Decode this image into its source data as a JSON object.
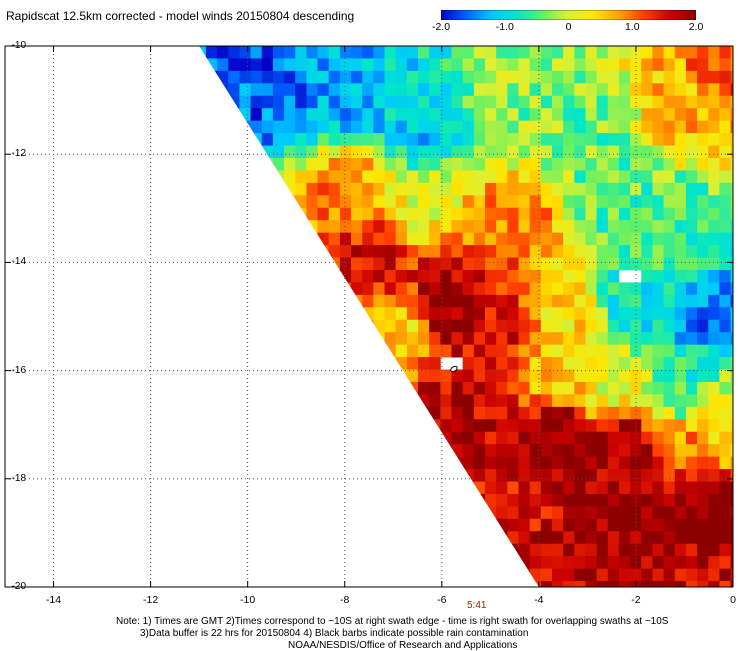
{
  "title": "Rapidscat 12.5km corrected - model winds 20150804 descending",
  "colorbar": {
    "ticks": [
      "-2.0",
      "-1.0",
      "0",
      "1.0",
      "2.0"
    ],
    "tick_values": [
      -2,
      -1,
      0,
      1,
      2
    ],
    "colors": [
      "#0000c8",
      "#0064ff",
      "#00c8ff",
      "#00e6c8",
      "#64f064",
      "#dcf032",
      "#ffe600",
      "#ffa000",
      "#ff3c00",
      "#c80000",
      "#8c0000"
    ]
  },
  "chart_data": {
    "type": "heatmap",
    "title": "Rapidscat 12.5km corrected - model winds 20150804 descending",
    "xlim": [
      -15,
      0
    ],
    "ylim": [
      -20,
      -10
    ],
    "x_ticks": [
      "-14",
      "-12",
      "-10",
      "-8",
      "-6",
      "-4",
      "-2",
      "0"
    ],
    "x_tick_values": [
      -14,
      -12,
      -10,
      -8,
      -6,
      -4,
      -2,
      0
    ],
    "y_ticks": [
      "-10",
      "-12",
      "-14",
      "-16",
      "-18",
      "-20"
    ],
    "y_tick_values": [
      -10,
      -12,
      -14,
      -16,
      -18,
      -20
    ],
    "value_range": [
      -2.0,
      2.0
    ],
    "cell_size_deg": 0.23,
    "swath_edge": [
      [
        -11.0,
        -10.0
      ],
      [
        -4.0,
        -20.0
      ]
    ],
    "grid": true,
    "regions": [
      {
        "lon": -9.5,
        "lat": -10.8,
        "value": -1.6
      },
      {
        "lon": -8.0,
        "lat": -11.0,
        "value": -1.3
      },
      {
        "lon": -6.5,
        "lat": -11.5,
        "value": -1.1
      },
      {
        "lon": -4.5,
        "lat": -11.0,
        "value": -0.3
      },
      {
        "lon": -3.0,
        "lat": -11.5,
        "value": -0.4
      },
      {
        "lon": -1.0,
        "lat": -11.0,
        "value": 0.6
      },
      {
        "lon": -0.2,
        "lat": -10.5,
        "value": 1.2
      },
      {
        "lon": -8.0,
        "lat": -12.7,
        "value": 0.9
      },
      {
        "lon": -6.5,
        "lat": -13.0,
        "value": 0.2
      },
      {
        "lon": -4.5,
        "lat": -13.5,
        "value": 1.0
      },
      {
        "lon": -2.5,
        "lat": -13.0,
        "value": -0.5
      },
      {
        "lon": -1.0,
        "lat": -13.5,
        "value": -0.6
      },
      {
        "lon": -7.3,
        "lat": -13.9,
        "value": 1.6
      },
      {
        "lon": -5.9,
        "lat": -14.8,
        "value": 2.0
      },
      {
        "lon": -4.8,
        "lat": -15.2,
        "value": 1.5
      },
      {
        "lon": -3.5,
        "lat": -15.0,
        "value": 0.4
      },
      {
        "lon": -2.0,
        "lat": -14.8,
        "value": -0.9
      },
      {
        "lon": -0.6,
        "lat": -14.9,
        "value": -1.5
      },
      {
        "lon": -6.8,
        "lat": -15.2,
        "value": 0.5
      },
      {
        "lon": -5.0,
        "lat": -16.3,
        "value": 1.6
      },
      {
        "lon": -3.8,
        "lat": -16.0,
        "value": 0.5
      },
      {
        "lon": -2.5,
        "lat": -16.2,
        "value": 0.1
      },
      {
        "lon": -1.0,
        "lat": -16.3,
        "value": -0.6
      },
      {
        "lon": -5.8,
        "lat": -17.0,
        "value": 1.8
      },
      {
        "lon": -3.6,
        "lat": -17.3,
        "value": 2.1
      },
      {
        "lon": -2.2,
        "lat": -17.5,
        "value": 1.9
      },
      {
        "lon": -0.8,
        "lat": -17.5,
        "value": 1.0
      },
      {
        "lon": -0.2,
        "lat": -17.0,
        "value": 0.2
      },
      {
        "lon": -4.4,
        "lat": -18.5,
        "value": 1.5
      },
      {
        "lon": -3.0,
        "lat": -19.0,
        "value": 1.9
      },
      {
        "lon": -1.5,
        "lat": -18.8,
        "value": 2.1
      },
      {
        "lon": -0.4,
        "lat": -18.6,
        "value": 2.2
      },
      {
        "lon": -3.8,
        "lat": -19.7,
        "value": 1.6
      },
      {
        "lon": -2.0,
        "lat": -19.7,
        "value": 1.8
      },
      {
        "lon": -0.5,
        "lat": -19.7,
        "value": 1.6
      }
    ],
    "missing_cells": [
      [
        -5.8,
        -15.8
      ],
      [
        -5.9,
        -15.9
      ],
      [
        -2.1,
        -14.2
      ]
    ]
  },
  "time_label": "5:41",
  "notes": [
    "Note: 1) Times are GMT 2)Times correspond to ~10S at right swath edge - time is right swath for overlapping swaths at ~10S",
    "3)Data buffer is 22 hrs for 20150804 4) Black barbs indicate possible rain contamination",
    "NOAA/NESDIS/Office of Research and Applications"
  ]
}
